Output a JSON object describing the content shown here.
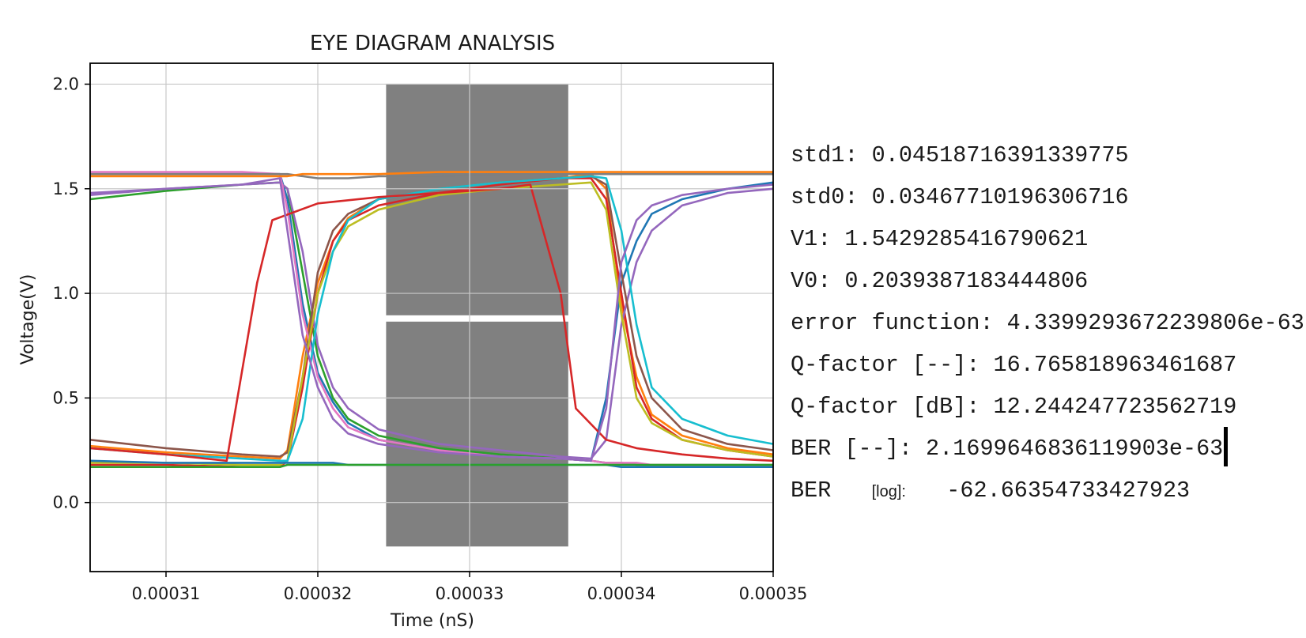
{
  "chart_data": {
    "type": "line",
    "title": "EYE DIAGRAM ANALYSIS",
    "xlabel": "Time (nS)",
    "ylabel": "Voltage(V)",
    "xlim": [
      0.000305,
      0.00035
    ],
    "ylim": [
      -0.33,
      2.1
    ],
    "xticks": [
      {
        "value": 0.00031,
        "label": "0.00031"
      },
      {
        "value": 0.00032,
        "label": "0.00032"
      },
      {
        "value": 0.00033,
        "label": "0.00033"
      },
      {
        "value": 0.00034,
        "label": "0.00034"
      },
      {
        "value": 0.00035,
        "label": "0.00035"
      }
    ],
    "yticks": [
      {
        "value": 0.0,
        "label": "0.0"
      },
      {
        "value": 0.5,
        "label": "0.5"
      },
      {
        "value": 1.0,
        "label": "1.0"
      },
      {
        "value": 1.5,
        "label": "1.5"
      },
      {
        "value": 2.0,
        "label": "2.0"
      }
    ],
    "grid": true,
    "mask": {
      "color": "#808080",
      "x_range": [
        0.0003245,
        0.0003365
      ],
      "y_range": [
        -0.21,
        2.0
      ],
      "threshold": 0.88
    },
    "palette": [
      "#1f77b4",
      "#ff7f0e",
      "#2ca02c",
      "#d62728",
      "#9467bd",
      "#8c564b",
      "#e377c2",
      "#bcbd22",
      "#17becf",
      "#7f7f7f"
    ],
    "series": [
      {
        "x": [
          0.000305,
          0.00031,
          0.000315,
          0.0003175,
          0.000318,
          0.000319,
          0.00032,
          0.000321,
          0.000322,
          0.000324,
          0.000328,
          0.000332,
          0.000336,
          0.000338,
          0.000339,
          0.00034,
          0.000341,
          0.000342,
          0.000344,
          0.000347,
          0.00035
        ],
        "y": [
          1.57,
          1.57,
          1.57,
          1.57,
          1.45,
          0.95,
          0.62,
          0.48,
          0.38,
          0.3,
          0.25,
          0.22,
          0.21,
          0.2,
          0.5,
          1.05,
          1.25,
          1.38,
          1.45,
          1.5,
          1.53
        ]
      },
      {
        "x": [
          0.000305,
          0.00031,
          0.000315,
          0.0003175,
          0.000318,
          0.000319,
          0.00032,
          0.000321,
          0.000322,
          0.000324,
          0.000328,
          0.000332,
          0.000336,
          0.000338,
          0.000339,
          0.00034,
          0.000341,
          0.000342,
          0.000344,
          0.000347,
          0.00035
        ],
        "y": [
          0.27,
          0.24,
          0.22,
          0.21,
          0.25,
          0.7,
          1.05,
          1.25,
          1.36,
          1.45,
          1.5,
          1.53,
          1.55,
          1.57,
          1.5,
          0.95,
          0.6,
          0.42,
          0.32,
          0.26,
          0.23
        ]
      },
      {
        "x": [
          0.000305,
          0.00031,
          0.000315,
          0.0003175,
          0.000318,
          0.000319,
          0.00032,
          0.000321,
          0.000322,
          0.000324,
          0.000328,
          0.000332,
          0.000336,
          0.000338,
          0.000339,
          0.00034,
          0.000341,
          0.000342,
          0.000344,
          0.000347,
          0.00035
        ],
        "y": [
          1.45,
          1.49,
          1.52,
          1.53,
          1.5,
          1.1,
          0.7,
          0.5,
          0.4,
          0.32,
          0.26,
          0.23,
          0.21,
          0.2,
          0.19,
          0.19,
          0.18,
          0.18,
          0.18,
          0.18,
          0.18
        ]
      },
      {
        "x": [
          0.000305,
          0.00031,
          0.000315,
          0.0003175,
          0.000318,
          0.000319,
          0.00032,
          0.000321,
          0.000322,
          0.000324,
          0.000328,
          0.000332,
          0.000336,
          0.000338,
          0.000339,
          0.00034,
          0.000341,
          0.000342,
          0.000344,
          0.000347,
          0.00035
        ],
        "y": [
          0.18,
          0.18,
          0.17,
          0.17,
          0.2,
          0.55,
          1.0,
          1.25,
          1.35,
          1.42,
          1.48,
          1.52,
          1.55,
          1.55,
          1.45,
          1.0,
          0.55,
          0.4,
          0.3,
          0.25,
          0.22
        ]
      },
      {
        "x": [
          0.000305,
          0.00031,
          0.000315,
          0.0003175,
          0.000318,
          0.000319,
          0.00032,
          0.000321,
          0.000322,
          0.000324,
          0.000328,
          0.000332,
          0.000336,
          0.000338,
          0.000339,
          0.00034,
          0.000341,
          0.000342,
          0.000344,
          0.000347,
          0.00035
        ],
        "y": [
          1.47,
          1.5,
          1.52,
          1.53,
          1.5,
          1.2,
          0.75,
          0.55,
          0.45,
          0.35,
          0.28,
          0.25,
          0.22,
          0.21,
          0.3,
          0.85,
          1.15,
          1.3,
          1.42,
          1.48,
          1.5
        ]
      },
      {
        "x": [
          0.000305,
          0.00031,
          0.000315,
          0.0003175,
          0.000318,
          0.000319,
          0.00032,
          0.000321,
          0.000322,
          0.000324,
          0.000328,
          0.000332,
          0.000336,
          0.000338,
          0.000339,
          0.00034,
          0.000341,
          0.000342,
          0.000344,
          0.000347,
          0.00035
        ],
        "y": [
          0.3,
          0.26,
          0.23,
          0.22,
          0.24,
          0.6,
          1.1,
          1.3,
          1.38,
          1.45,
          1.5,
          1.53,
          1.55,
          1.56,
          1.52,
          1.1,
          0.7,
          0.5,
          0.35,
          0.28,
          0.25
        ]
      },
      {
        "x": [
          0.000305,
          0.00031,
          0.000315,
          0.0003175,
          0.000318,
          0.000319,
          0.00032,
          0.000321,
          0.000322,
          0.000324,
          0.000328,
          0.000332,
          0.000336,
          0.000338,
          0.000339,
          0.00034,
          0.000341,
          0.000342,
          0.000344,
          0.000347,
          0.00035
        ],
        "y": [
          1.58,
          1.58,
          1.58,
          1.57,
          1.4,
          0.9,
          0.6,
          0.45,
          0.36,
          0.3,
          0.25,
          0.22,
          0.21,
          0.2,
          0.19,
          0.19,
          0.19,
          0.18,
          0.18,
          0.18,
          0.18
        ]
      },
      {
        "x": [
          0.000305,
          0.00031,
          0.000315,
          0.0003175,
          0.000318,
          0.000319,
          0.00032,
          0.000321,
          0.000322,
          0.000324,
          0.000328,
          0.000332,
          0.000336,
          0.000338,
          0.000339,
          0.00034,
          0.000341,
          0.000342,
          0.000344,
          0.000347,
          0.00035
        ],
        "y": [
          0.19,
          0.19,
          0.18,
          0.18,
          0.2,
          0.6,
          1.0,
          1.2,
          1.32,
          1.4,
          1.47,
          1.5,
          1.52,
          1.53,
          1.4,
          0.9,
          0.5,
          0.38,
          0.3,
          0.25,
          0.22
        ]
      },
      {
        "x": [
          0.000305,
          0.00031,
          0.000315,
          0.0003175,
          0.000318,
          0.000319,
          0.00032,
          0.000321,
          0.000322,
          0.000324,
          0.000328,
          0.000332,
          0.000336,
          0.000338,
          0.000339,
          0.00034,
          0.000341,
          0.000342,
          0.000344,
          0.000347,
          0.00035
        ],
        "y": [
          0.26,
          0.23,
          0.21,
          0.2,
          0.2,
          0.4,
          0.9,
          1.2,
          1.35,
          1.45,
          1.5,
          1.53,
          1.55,
          1.56,
          1.55,
          1.3,
          0.85,
          0.55,
          0.4,
          0.32,
          0.28
        ]
      },
      {
        "x": [
          0.000305,
          0.00031,
          0.000315,
          0.0003175,
          0.000318,
          0.000319,
          0.00032,
          0.000321,
          0.000322,
          0.000324,
          0.000328,
          0.000332,
          0.000336,
          0.000338,
          0.000339,
          0.00034,
          0.000341,
          0.000342,
          0.000344,
          0.000347,
          0.00035
        ],
        "y": [
          1.57,
          1.57,
          1.57,
          1.57,
          1.57,
          1.56,
          1.55,
          1.55,
          1.55,
          1.56,
          1.56,
          1.57,
          1.57,
          1.57,
          1.57,
          1.57,
          1.57,
          1.57,
          1.57,
          1.57,
          1.57
        ]
      },
      {
        "x": [
          0.000305,
          0.00031,
          0.000315,
          0.0003175,
          0.000318,
          0.000319,
          0.00032,
          0.000321,
          0.000322,
          0.000324,
          0.000328,
          0.000332,
          0.000336,
          0.000338,
          0.000339,
          0.00034,
          0.000341,
          0.000342,
          0.000344,
          0.000347,
          0.00035
        ],
        "y": [
          0.2,
          0.19,
          0.19,
          0.19,
          0.19,
          0.19,
          0.19,
          0.19,
          0.18,
          0.18,
          0.18,
          0.18,
          0.18,
          0.18,
          0.18,
          0.17,
          0.17,
          0.17,
          0.17,
          0.17,
          0.17
        ]
      },
      {
        "x": [
          0.000305,
          0.00031,
          0.000315,
          0.0003175,
          0.000318,
          0.000319,
          0.00032,
          0.000321,
          0.000322,
          0.000324,
          0.000328,
          0.000332,
          0.000336,
          0.000338,
          0.000339,
          0.00034,
          0.000341,
          0.000342,
          0.000344,
          0.000347,
          0.00035
        ],
        "y": [
          1.56,
          1.56,
          1.56,
          1.56,
          1.56,
          1.57,
          1.57,
          1.57,
          1.57,
          1.57,
          1.58,
          1.58,
          1.58,
          1.58,
          1.58,
          1.58,
          1.58,
          1.58,
          1.58,
          1.58,
          1.58
        ]
      },
      {
        "x": [
          0.000305,
          0.00031,
          0.000315,
          0.0003175,
          0.000318,
          0.000319,
          0.00032,
          0.000321,
          0.000322,
          0.000324,
          0.000328,
          0.000332,
          0.000336,
          0.000338,
          0.000339,
          0.00034,
          0.000341,
          0.000342,
          0.000344,
          0.000347,
          0.00035
        ],
        "y": [
          0.17,
          0.17,
          0.17,
          0.17,
          0.18,
          0.18,
          0.18,
          0.18,
          0.18,
          0.18,
          0.18,
          0.18,
          0.18,
          0.18,
          0.18,
          0.18,
          0.18,
          0.18,
          0.18,
          0.18,
          0.18
        ]
      },
      {
        "x": [
          0.000305,
          0.00031,
          0.000314,
          0.000316,
          0.000317,
          0.00032,
          0.000324,
          0.000328,
          0.000332,
          0.000334,
          0.000336,
          0.000337,
          0.000339,
          0.000341,
          0.000344,
          0.000347,
          0.00035
        ],
        "y": [
          0.26,
          0.23,
          0.2,
          1.05,
          1.35,
          1.43,
          1.46,
          1.48,
          1.5,
          1.52,
          1.0,
          0.45,
          0.3,
          0.26,
          0.23,
          0.21,
          0.2
        ]
      },
      {
        "x": [
          0.000305,
          0.00031,
          0.000315,
          0.0003175,
          0.000318,
          0.000319,
          0.00032,
          0.000321,
          0.000322,
          0.000324,
          0.000328,
          0.000332,
          0.000336,
          0.000338,
          0.000339,
          0.00034,
          0.000341,
          0.000342,
          0.000344,
          0.000347,
          0.00035
        ],
        "y": [
          1.48,
          1.5,
          1.52,
          1.55,
          1.3,
          0.8,
          0.55,
          0.4,
          0.33,
          0.28,
          0.24,
          0.22,
          0.21,
          0.2,
          0.45,
          1.15,
          1.35,
          1.42,
          1.47,
          1.5,
          1.52
        ]
      }
    ]
  },
  "stats": {
    "std1": "std1: 0.04518716391339775",
    "std0": "std0: 0.03467710196306716",
    "v1": "V1: 1.5429285416790621",
    "v0": "V0: 0.2039387183444806",
    "error_function": "error function: 4.339929367223980​6e-63",
    "q_factor_lin": "Q-factor [--]: 16.765818963461687",
    "q_factor_db": "Q-factor [dB]: 12.244247723562719",
    "ber_lin": "BER [--]: 2.1699646836119903e-63",
    "ber_log_prefix": "BER",
    "ber_log_tag": "[log]:",
    "ber_log_value": "-62.66354733427923"
  }
}
